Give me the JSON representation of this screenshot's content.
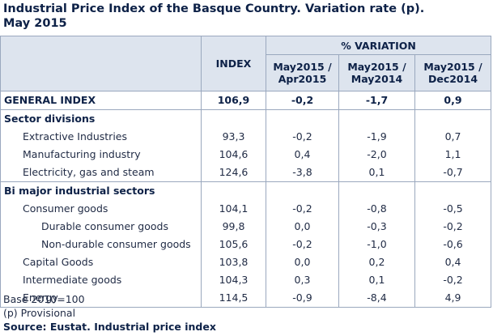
{
  "title_line1": "Industrial Price Index of the Basque Country. Variation rate (p).",
  "title_line2": "May 2015",
  "header": {
    "index": "INDEX",
    "variation": "% VARIATION",
    "col1": [
      "May2015 /",
      "Apr2015"
    ],
    "col2": [
      "May2015 /",
      "May2014"
    ],
    "col3": [
      "May2015 /",
      "Dec2014"
    ]
  },
  "rows": [
    {
      "label": "GENERAL INDEX",
      "index": "106,9",
      "v1": "-0,2",
      "v2": "-1,7",
      "v3": "0,9"
    },
    {
      "label": "Sector divisions",
      "index": "",
      "v1": "",
      "v2": "",
      "v3": ""
    },
    {
      "label": "Extractive Industries",
      "index": "93,3",
      "v1": "-0,2",
      "v2": "-1,9",
      "v3": "0,7"
    },
    {
      "label": "Manufacturing industry",
      "index": "104,6",
      "v1": "0,4",
      "v2": "-2,0",
      "v3": "1,1"
    },
    {
      "label": "Electricity, gas and steam",
      "index": "124,6",
      "v1": "-3,8",
      "v2": "0,1",
      "v3": "-0,7"
    },
    {
      "label": "Bi major industrial sectors",
      "index": "",
      "v1": "",
      "v2": "",
      "v3": ""
    },
    {
      "label": "Consumer goods",
      "index": "104,1",
      "v1": "-0,2",
      "v2": "-0,8",
      "v3": "-0,5"
    },
    {
      "label": "Durable consumer goods",
      "index": "99,8",
      "v1": "0,0",
      "v2": "-0,3",
      "v3": "-0,2"
    },
    {
      "label": "Non-durable consumer goods",
      "index": "105,6",
      "v1": "-0,2",
      "v2": "-1,0",
      "v3": "-0,6"
    },
    {
      "label": "Capital Goods",
      "index": "103,8",
      "v1": "0,0",
      "v2": "0,2",
      "v3": "0,4"
    },
    {
      "label": "Intermediate goods",
      "index": "104,3",
      "v1": "0,3",
      "v2": "0,1",
      "v3": "-0,2"
    },
    {
      "label": "Energy",
      "index": "114,5",
      "v1": "-0,9",
      "v2": "-8,4",
      "v3": "4,9"
    }
  ],
  "footnotes": {
    "base": "Base 2010=100",
    "provisional": "(p) Provisional",
    "source": "Source: Eustat. Industrial price index"
  }
}
